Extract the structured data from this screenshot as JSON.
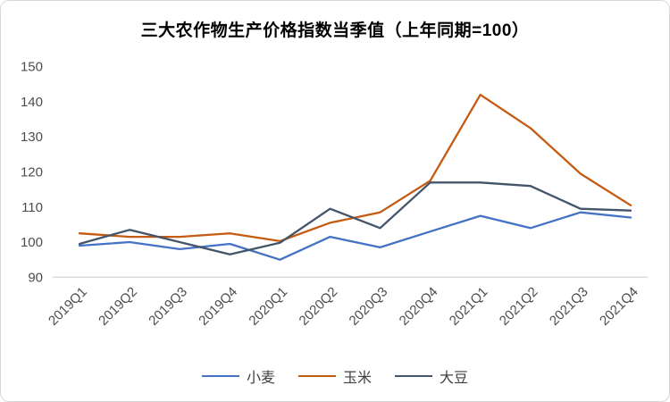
{
  "chart_data": {
    "type": "line",
    "title": "三大农作物生产价格指数当季值（上年同期=100）",
    "categories": [
      "2019Q1",
      "2019Q2",
      "2019Q3",
      "2019Q4",
      "2020Q1",
      "2020Q2",
      "2020Q3",
      "2020Q4",
      "2021Q1",
      "2021Q2",
      "2021Q3",
      "2021Q4"
    ],
    "series": [
      {
        "name": "小麦",
        "color": "#4472C4",
        "values": [
          99,
          100,
          98,
          99.5,
          95,
          101.5,
          98.5,
          103,
          107.5,
          104,
          108.5,
          107
        ]
      },
      {
        "name": "玉米",
        "color": "#C55A11",
        "values": [
          102.5,
          101.5,
          101.5,
          102.5,
          100.3,
          105.5,
          108.5,
          117.5,
          142,
          132.5,
          119.5,
          110.5
        ]
      },
      {
        "name": "大豆",
        "color": "#44546A",
        "values": [
          99.5,
          103.5,
          100,
          96.5,
          99.8,
          109.5,
          104,
          117,
          117,
          116,
          109.5,
          109
        ]
      }
    ],
    "xlabel": "",
    "ylabel": "",
    "ylim": [
      90,
      150
    ],
    "ytick_step": 10,
    "ytick_labels": [
      "90",
      "100",
      "110",
      "120",
      "130",
      "140",
      "150"
    ],
    "grid": false,
    "legend_position": "bottom",
    "axis_color": "#D9D9D9",
    "tick_label_color": "#4D4D4D",
    "title_color": "#000000",
    "line_width": 2.3
  }
}
